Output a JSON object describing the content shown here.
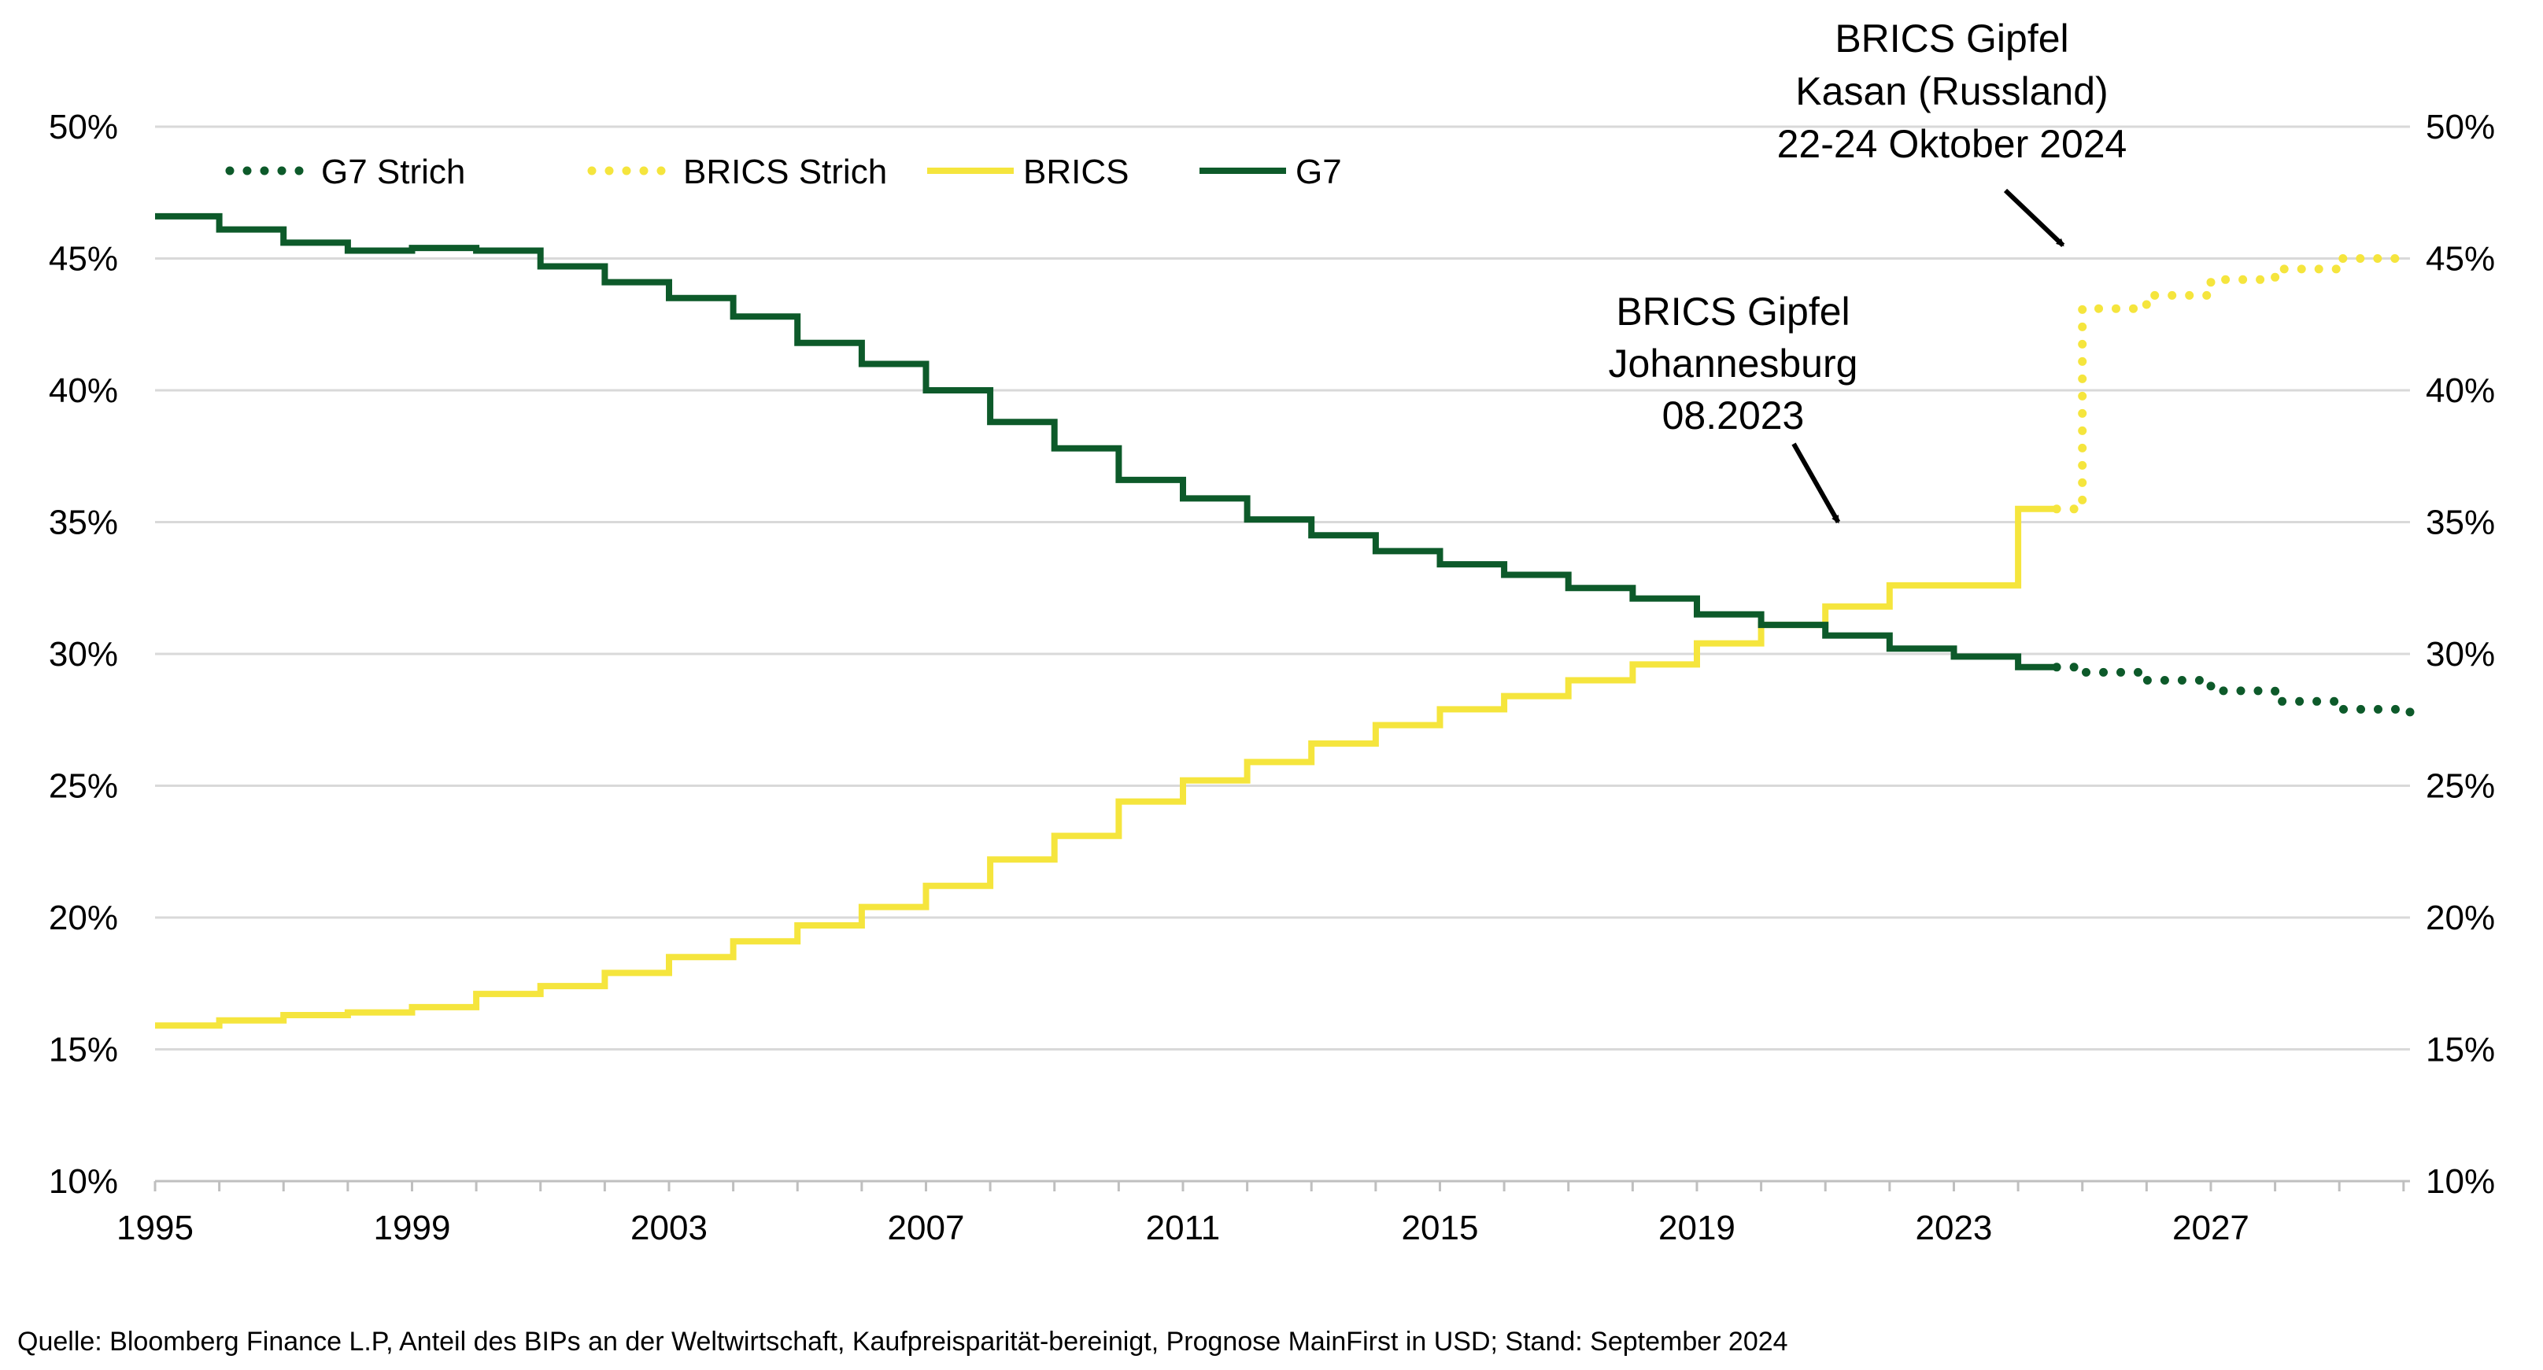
{
  "chart_data": {
    "type": "line",
    "step": true,
    "x_ticks": [
      "1995",
      "1999",
      "2003",
      "2007",
      "2011",
      "2015",
      "2019",
      "2023",
      "2027"
    ],
    "xlim": [
      1995,
      2030.1
    ],
    "y_ticks": [
      "10%",
      "15%",
      "20%",
      "25%",
      "30%",
      "35%",
      "40%",
      "45%",
      "50%"
    ],
    "ylim": [
      10,
      50
    ],
    "dual_y_axis": true,
    "grid": "horizontal",
    "legend_position": "top-left",
    "legend": [
      "G7 Strich",
      "BRICS Strich",
      "BRICS",
      "G7"
    ],
    "series": [
      {
        "name": "G7",
        "color": "#0d5a2a",
        "style": "solid",
        "x": [
          1995,
          1996,
          1997,
          1998,
          1999,
          2000,
          2001,
          2002,
          2003,
          2004,
          2005,
          2006,
          2007,
          2008,
          2009,
          2010,
          2011,
          2012,
          2013,
          2014,
          2015,
          2016,
          2017,
          2018,
          2019,
          2020,
          2021,
          2022,
          2023,
          2024,
          2024.6
        ],
        "values": [
          46.6,
          46.1,
          45.6,
          45.3,
          45.4,
          45.3,
          44.7,
          44.1,
          43.5,
          42.8,
          41.8,
          41.0,
          40.0,
          38.8,
          37.8,
          36.6,
          35.9,
          35.1,
          34.5,
          33.9,
          33.4,
          33.0,
          32.5,
          32.1,
          31.5,
          31.1,
          30.7,
          30.2,
          29.9,
          29.5,
          29.5
        ]
      },
      {
        "name": "BRICS",
        "color": "#f5e53d",
        "style": "solid",
        "x": [
          1995,
          1996,
          1997,
          1998,
          1999,
          2000,
          2001,
          2002,
          2003,
          2004,
          2005,
          2006,
          2007,
          2008,
          2009,
          2010,
          2011,
          2012,
          2013,
          2014,
          2015,
          2016,
          2017,
          2018,
          2019,
          2020,
          2021,
          2022,
          2023,
          2024,
          2024.6
        ],
        "values": [
          15.9,
          16.1,
          16.3,
          16.4,
          16.6,
          17.1,
          17.4,
          17.9,
          18.5,
          19.1,
          19.7,
          20.4,
          21.2,
          22.2,
          23.1,
          24.4,
          25.2,
          25.9,
          26.6,
          27.3,
          27.9,
          28.4,
          29.0,
          29.6,
          30.4,
          31.1,
          31.8,
          32.6,
          32.6,
          35.5,
          35.5
        ]
      },
      {
        "name": "G7 Strich",
        "color": "#0d5a2a",
        "style": "dotted",
        "x": [
          2024.6,
          2025,
          2026,
          2027,
          2028,
          2029,
          2030.1
        ],
        "values": [
          29.5,
          29.3,
          29.0,
          28.6,
          28.2,
          27.9,
          27.4
        ]
      },
      {
        "name": "BRICS Strich",
        "color": "#f5e53d",
        "style": "dotted",
        "x": [
          2024.6,
          2025,
          2026,
          2027,
          2028,
          2029,
          2030.1
        ],
        "values": [
          35.5,
          43.1,
          43.6,
          44.2,
          44.6,
          45.0,
          45.0
        ]
      }
    ],
    "annotations": [
      {
        "lines": [
          "BRICS Gipfel",
          "Johannesburg",
          "08.2023"
        ],
        "arrow_to": [
          2021.2,
          35.0
        ]
      },
      {
        "lines": [
          "BRICS Gipfel",
          "Kasan (Russland)",
          "22-24 Oktober 2024"
        ],
        "arrow_to": [
          2024.7,
          45.5
        ]
      }
    ]
  },
  "footer": {
    "source": "Quelle: Bloomberg Finance L.P, Anteil des BIPs an der Weltwirtschaft, Kaufpreisparität-bereinigt, Prognose MainFirst in USD; Stand: September 2024"
  }
}
